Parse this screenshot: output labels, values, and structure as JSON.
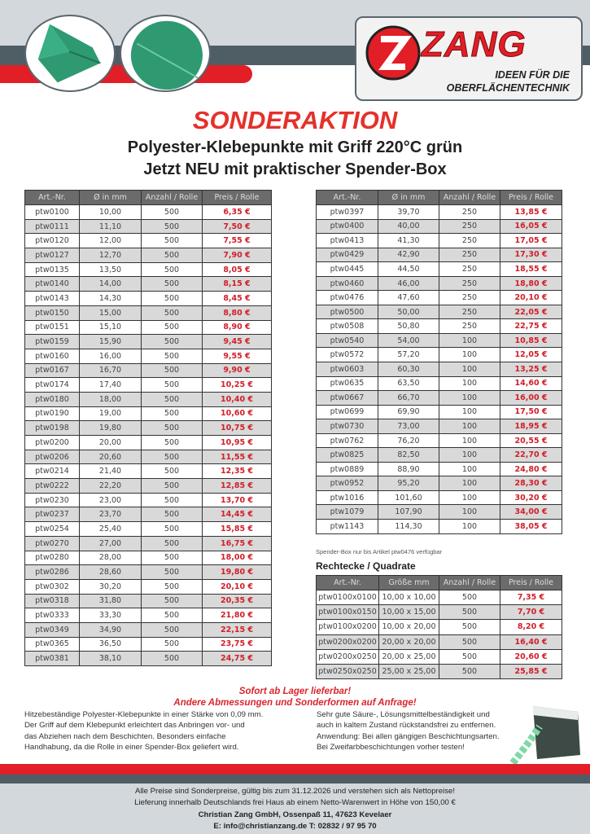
{
  "brand": {
    "name": "ZANG",
    "tagline_1": "IDEEN FÜR DIE",
    "tagline_2": "OBERFLÄCHENTECHNIK",
    "red": "#e21e26",
    "dark": "#4f5d65",
    "light": "#d3d8dc"
  },
  "header": {
    "title": "SONDERAKTION",
    "subtitle_1": "Polyester-Klebepunkte mit Griff 220°C grün",
    "subtitle_2": "Jetzt NEU mit praktischer Spender-Box"
  },
  "round_columns": [
    "Art.-Nr.",
    "Ø in mm",
    "Anzahl / Rolle",
    "Preis / Rolle"
  ],
  "table_left": [
    [
      "ptw0100",
      "10,00",
      "500",
      "6,35 €"
    ],
    [
      "ptw0111",
      "11,10",
      "500",
      "7,50 €"
    ],
    [
      "ptw0120",
      "12,00",
      "500",
      "7,55 €"
    ],
    [
      "ptw0127",
      "12,70",
      "500",
      "7,90 €"
    ],
    [
      "ptw0135",
      "13,50",
      "500",
      "8,05 €"
    ],
    [
      "ptw0140",
      "14,00",
      "500",
      "8,15 €"
    ],
    [
      "ptw0143",
      "14,30",
      "500",
      "8,45 €"
    ],
    [
      "ptw0150",
      "15,00",
      "500",
      "8,80 €"
    ],
    [
      "ptw0151",
      "15,10",
      "500",
      "8,90 €"
    ],
    [
      "ptw0159",
      "15,90",
      "500",
      "9,45 €"
    ],
    [
      "ptw0160",
      "16,00",
      "500",
      "9,55 €"
    ],
    [
      "ptw0167",
      "16,70",
      "500",
      "9,90 €"
    ],
    [
      "ptw0174",
      "17,40",
      "500",
      "10,25 €"
    ],
    [
      "ptw0180",
      "18,00",
      "500",
      "10,40 €"
    ],
    [
      "ptw0190",
      "19,00",
      "500",
      "10,60 €"
    ],
    [
      "ptw0198",
      "19,80",
      "500",
      "10,75 €"
    ],
    [
      "ptw0200",
      "20,00",
      "500",
      "10,95 €"
    ],
    [
      "ptw0206",
      "20,60",
      "500",
      "11,55 €"
    ],
    [
      "ptw0214",
      "21,40",
      "500",
      "12,35 €"
    ],
    [
      "ptw0222",
      "22,20",
      "500",
      "12,85 €"
    ],
    [
      "ptw0230",
      "23,00",
      "500",
      "13,70 €"
    ],
    [
      "ptw0237",
      "23,70",
      "500",
      "14,45 €"
    ],
    [
      "ptw0254",
      "25,40",
      "500",
      "15,85 €"
    ],
    [
      "ptw0270",
      "27,00",
      "500",
      "16,75 €"
    ],
    [
      "ptw0280",
      "28,00",
      "500",
      "18,00 €"
    ],
    [
      "ptw0286",
      "28,60",
      "500",
      "19,80 €"
    ],
    [
      "ptw0302",
      "30,20",
      "500",
      "20,10 €"
    ],
    [
      "ptw0318",
      "31,80",
      "500",
      "20,35 €"
    ],
    [
      "ptw0333",
      "33,30",
      "500",
      "21,80 €"
    ],
    [
      "ptw0349",
      "34,90",
      "500",
      "22,15 €"
    ],
    [
      "ptw0365",
      "36,50",
      "500",
      "23,75 €"
    ],
    [
      "ptw0381",
      "38,10",
      "500",
      "24,75 €"
    ]
  ],
  "table_right": [
    [
      "ptw0397",
      "39,70",
      "250",
      "13,85 €"
    ],
    [
      "ptw0400",
      "40,00",
      "250",
      "16,05 €"
    ],
    [
      "ptw0413",
      "41,30",
      "250",
      "17,05 €"
    ],
    [
      "ptw0429",
      "42,90",
      "250",
      "17,30 €"
    ],
    [
      "ptw0445",
      "44,50",
      "250",
      "18,55 €"
    ],
    [
      "ptw0460",
      "46,00",
      "250",
      "18,80 €"
    ],
    [
      "ptw0476",
      "47,60",
      "250",
      "20,10 €"
    ],
    [
      "ptw0500",
      "50,00",
      "250",
      "22,05 €"
    ],
    [
      "ptw0508",
      "50,80",
      "250",
      "22,75 €"
    ],
    [
      "ptw0540",
      "54,00",
      "100",
      "10,85 €"
    ],
    [
      "ptw0572",
      "57,20",
      "100",
      "12,05 €"
    ],
    [
      "ptw0603",
      "60,30",
      "100",
      "13,25 €"
    ],
    [
      "ptw0635",
      "63,50",
      "100",
      "14,60 €"
    ],
    [
      "ptw0667",
      "66,70",
      "100",
      "16,00 €"
    ],
    [
      "ptw0699",
      "69,90",
      "100",
      "17,50 €"
    ],
    [
      "ptw0730",
      "73,00",
      "100",
      "18,95 €"
    ],
    [
      "ptw0762",
      "76,20",
      "100",
      "20,55 €"
    ],
    [
      "ptw0825",
      "82,50",
      "100",
      "22,70 €"
    ],
    [
      "ptw0889",
      "88,90",
      "100",
      "24,80 €"
    ],
    [
      "ptw0952",
      "95,20",
      "100",
      "28,30 €"
    ],
    [
      "ptw1016",
      "101,60",
      "100",
      "30,20 €"
    ],
    [
      "ptw1079",
      "107,90",
      "100",
      "34,00 €"
    ],
    [
      "ptw1143",
      "114,30",
      "100",
      "38,05 €"
    ]
  ],
  "note": "Spender-Box nur bis Artikel ptw0476 verfügbar",
  "rect_heading": "Rechtecke / Quadrate",
  "rect_columns": [
    "Art.-Nr.",
    "Größe mm",
    "Anzahl / Rolle",
    "Preis / Rolle"
  ],
  "table_rect": [
    [
      "ptw0100x0100",
      "10,00 x 10,00",
      "500",
      "7,35 €"
    ],
    [
      "ptw0100x0150",
      "10,00 x 15,00",
      "500",
      "7,70 €"
    ],
    [
      "ptw0100x0200",
      "10,00 x 20,00",
      "500",
      "8,20 €"
    ],
    [
      "ptw0200x0200",
      "20,00 x 20,00",
      "500",
      "16,40 €"
    ],
    [
      "ptw0200x0250",
      "20,00 x 25,00",
      "500",
      "20,60 €"
    ],
    [
      "ptw0250x0250",
      "25,00 x 25,00",
      "500",
      "25,85 €"
    ]
  ],
  "promo": {
    "line_1": "Sofort ab Lager lieferbar!",
    "line_2": "Andere Abmessungen und Sonderformen auf Anfrage!"
  },
  "desc_left": [
    "Hitzebeständige Polyester-Klebepunkte in einer Stärke von 0,09 mm.",
    "Der Griff auf dem Klebepunkt erleichtert das Anbringen vor- und",
    "das Abziehen nach dem Beschichten. Besonders einfache",
    "Handhabung, da die Rolle in einer Spender-Box geliefert wird."
  ],
  "desc_right": [
    "Sehr gute Säure-, Lösungsmittelbeständigkeit und",
    "auch in kaltem Zustand rückstandsfrei zu entfernen.",
    "Anwendung: Bei allen gängigen Beschichtungsarten.",
    "Bei Zweifarbbeschichtungen vorher testen!"
  ],
  "footer": {
    "line_1": "Alle Preise sind Sonderpreise, gültig bis zum 31.12.2026 und verstehen sich als Nettopreise!",
    "line_2": "Lieferung innerhalb Deutschlands frei Haus ab einem Netto-Warenwert in Höhe von 150,00 €",
    "company": "Christian Zang GmbH, Ossenpaß 11, 47623 Kevelaer",
    "contact": "E: info@christianzang.de T: 02832 / 97 95 70"
  }
}
